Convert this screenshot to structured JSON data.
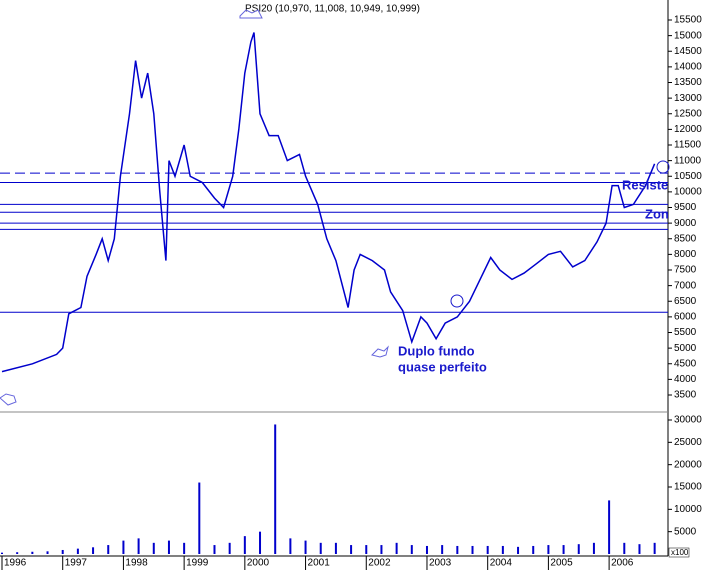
{
  "chart_data": [
    {
      "type": "line",
      "title": "PSI20 (10,970, 11,008, 10,949, 10,999)",
      "color": "#0000cc",
      "x": [
        1996.0,
        1996.5,
        1996.9,
        1997.0,
        1997.1,
        1997.3,
        1997.4,
        1997.55,
        1997.65,
        1997.75,
        1997.85,
        1997.95,
        1998.1,
        1998.2,
        1998.3,
        1998.4,
        1998.5,
        1998.6,
        1998.7,
        1998.75,
        1998.85,
        1999.0,
        1999.1,
        1999.3,
        1999.5,
        1999.65,
        1999.8,
        1999.9,
        2000.0,
        2000.1,
        2000.15,
        2000.25,
        2000.4,
        2000.55,
        2000.7,
        2000.9,
        2001.0,
        2001.2,
        2001.35,
        2001.5,
        2001.7,
        2001.8,
        2001.9,
        2002.1,
        2002.3,
        2002.4,
        2002.6,
        2002.75,
        2002.9,
        2003.0,
        2003.15,
        2003.3,
        2003.5,
        2003.7,
        2003.9,
        2004.05,
        2004.2,
        2004.4,
        2004.6,
        2004.8,
        2005.0,
        2005.2,
        2005.4,
        2005.6,
        2005.8,
        2005.95,
        2006.05,
        2006.15,
        2006.25,
        2006.4,
        2006.6,
        2006.75
      ],
      "values": [
        4250,
        4500,
        4800,
        5000,
        6100,
        6300,
        7300,
        8000,
        8500,
        7800,
        8500,
        10500,
        12500,
        14200,
        13000,
        13800,
        12500,
        10000,
        7800,
        11000,
        10500,
        11500,
        10500,
        10300,
        9800,
        9500,
        10500,
        12000,
        13800,
        14800,
        15100,
        12500,
        11800,
        11800,
        11000,
        11200,
        10500,
        9600,
        8500,
        7800,
        6300,
        7500,
        8000,
        7800,
        7500,
        6800,
        6200,
        5200,
        6000,
        5800,
        5300,
        5800,
        6000,
        6500,
        7300,
        7900,
        7500,
        7200,
        7400,
        7700,
        8000,
        8100,
        7600,
        7800,
        8400,
        9000,
        10200,
        10200,
        9500,
        9600,
        10200,
        10900
      ],
      "levels": [
        {
          "value": 10600,
          "style": "dashed"
        },
        {
          "value": 10300,
          "style": "solid"
        },
        {
          "value": 9600,
          "style": "solid"
        },
        {
          "value": 9350,
          "style": "solid"
        },
        {
          "value": 9000,
          "style": "solid"
        },
        {
          "value": 8800,
          "style": "solid"
        },
        {
          "value": 6150,
          "style": "solid"
        }
      ],
      "annotations": [
        "Duplo fundo",
        "quase perfeito",
        "Resiste",
        "Zon"
      ],
      "xlim": [
        1996,
        2006.97
      ],
      "ylim": [
        3500,
        15500
      ],
      "yticks": [
        3500,
        4000,
        4500,
        5000,
        5500,
        6000,
        6500,
        7000,
        7500,
        8000,
        8500,
        9000,
        9500,
        10000,
        10500,
        11000,
        11500,
        12000,
        12500,
        13000,
        13500,
        14000,
        14500,
        15000,
        15500
      ]
    },
    {
      "type": "bar",
      "color": "#0000cc",
      "unit_label": "x100",
      "x": [
        1996.0,
        1996.25,
        1996.5,
        1996.75,
        1997.0,
        1997.25,
        1997.5,
        1997.75,
        1998.0,
        1998.25,
        1998.5,
        1998.75,
        1999.0,
        1999.25,
        1999.5,
        1999.75,
        2000.0,
        2000.25,
        2000.5,
        2000.75,
        2001.0,
        2001.25,
        2001.5,
        2001.75,
        2002.0,
        2002.25,
        2002.5,
        2002.75,
        2003.0,
        2003.25,
        2003.5,
        2003.75,
        2004.0,
        2004.25,
        2004.5,
        2004.75,
        2005.0,
        2005.25,
        2005.5,
        2005.75,
        2006.0,
        2006.25,
        2006.5,
        2006.75
      ],
      "values": [
        300,
        400,
        500,
        600,
        900,
        1200,
        1500,
        2000,
        3000,
        3500,
        2500,
        3000,
        2500,
        16000,
        2000,
        2500,
        4000,
        5000,
        29000,
        3500,
        3000,
        2500,
        2500,
        2000,
        2000,
        2000,
        2500,
        2000,
        1800,
        2000,
        1800,
        1800,
        1800,
        1800,
        1600,
        1800,
        2000,
        2000,
        2200,
        2500,
        12000,
        2500,
        2200,
        2500
      ],
      "xlim": [
        1996,
        2006.97
      ],
      "xticks": [
        1996,
        1997,
        1998,
        1999,
        2000,
        2001,
        2002,
        2003,
        2004,
        2005,
        2006
      ],
      "ylim": [
        0,
        30000
      ],
      "yticks": [
        5000,
        10000,
        15000,
        20000,
        25000,
        30000
      ]
    }
  ]
}
